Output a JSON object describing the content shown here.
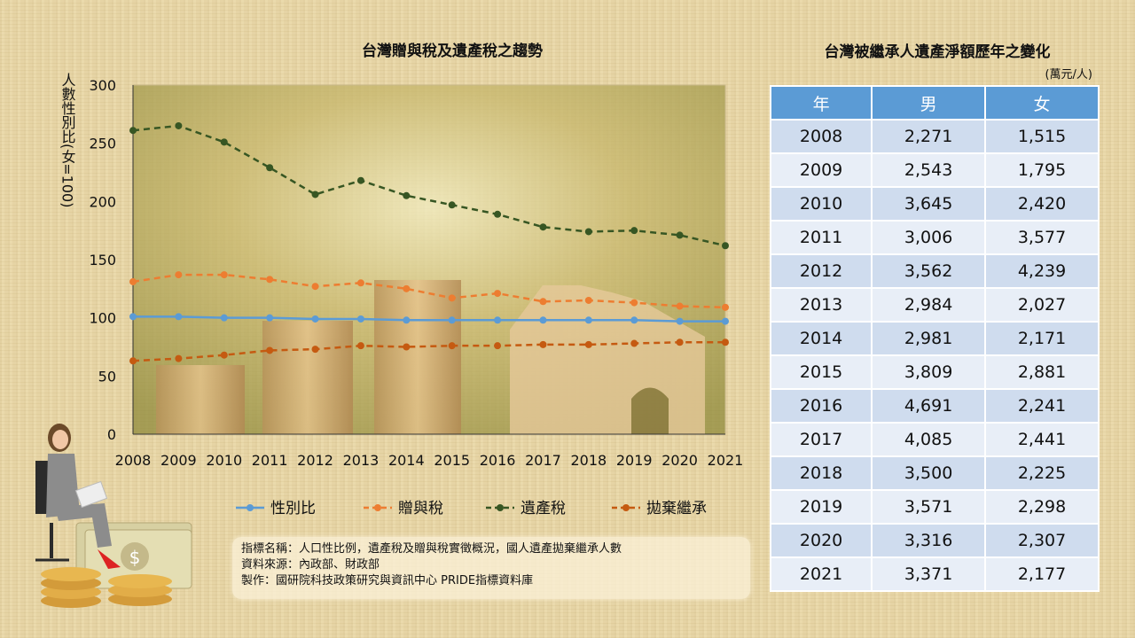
{
  "chart_data": {
    "type": "line",
    "title": "台灣贈與稅及遺產稅之趨勢",
    "ylabel": "人數性別比(女=100)",
    "xlabel": "",
    "ylim": [
      0,
      300
    ],
    "yticks": [
      "0",
      "50",
      "100",
      "150",
      "200",
      "250",
      "300"
    ],
    "categories": [
      "2008",
      "2009",
      "2010",
      "2011",
      "2012",
      "2013",
      "2014",
      "2015",
      "2016",
      "2017",
      "2018",
      "2019",
      "2020",
      "2021"
    ],
    "legend_position": "bottom",
    "series": [
      {
        "name": "性別比",
        "color": "#5b9bd5",
        "style": "solid",
        "values": [
          101,
          101,
          100,
          100,
          99,
          99,
          98,
          98,
          98,
          98,
          98,
          98,
          97,
          97
        ]
      },
      {
        "name": "贈與稅",
        "color": "#ed7d31",
        "style": "dashed",
        "values": [
          131,
          137,
          137,
          133,
          127,
          130,
          125,
          117,
          121,
          114,
          115,
          113,
          110,
          109
        ]
      },
      {
        "name": "遺產稅",
        "color": "#375623",
        "style": "dashed",
        "values": [
          261,
          265,
          251,
          229,
          206,
          218,
          205,
          197,
          189,
          178,
          174,
          175,
          171,
          162
        ]
      },
      {
        "name": "拋棄繼承",
        "color": "#c55a11",
        "style": "dashed",
        "values": [
          63,
          65,
          68,
          72,
          73,
          76,
          75,
          76,
          76,
          77,
          77,
          78,
          79,
          79
        ]
      }
    ]
  },
  "notes": {
    "line1": "指標名稱：人口性比例，遺產稅及贈與稅實徵概況，國人遺產拋棄繼承人數",
    "line2": "資料來源：內政部、財政部",
    "line3": "製作：國研院科技政策研究與資訊中心  PRIDE指標資料庫"
  },
  "table": {
    "title": "台灣被繼承人遺產淨額歷年之變化",
    "unit": "(萬元/人)",
    "headers": [
      "年",
      "男",
      "女"
    ],
    "rows": [
      [
        "2008",
        "2,271",
        "1,515"
      ],
      [
        "2009",
        "2,543",
        "1,795"
      ],
      [
        "2010",
        "3,645",
        "2,420"
      ],
      [
        "2011",
        "3,006",
        "3,577"
      ],
      [
        "2012",
        "3,562",
        "4,239"
      ],
      [
        "2013",
        "2,984",
        "2,027"
      ],
      [
        "2014",
        "2,981",
        "2,171"
      ],
      [
        "2015",
        "3,809",
        "2,881"
      ],
      [
        "2016",
        "4,691",
        "2,241"
      ],
      [
        "2017",
        "4,085",
        "2,441"
      ],
      [
        "2018",
        "3,500",
        "2,225"
      ],
      [
        "2019",
        "3,571",
        "2,298"
      ],
      [
        "2020",
        "3,316",
        "2,307"
      ],
      [
        "2021",
        "3,371",
        "2,177"
      ]
    ]
  }
}
